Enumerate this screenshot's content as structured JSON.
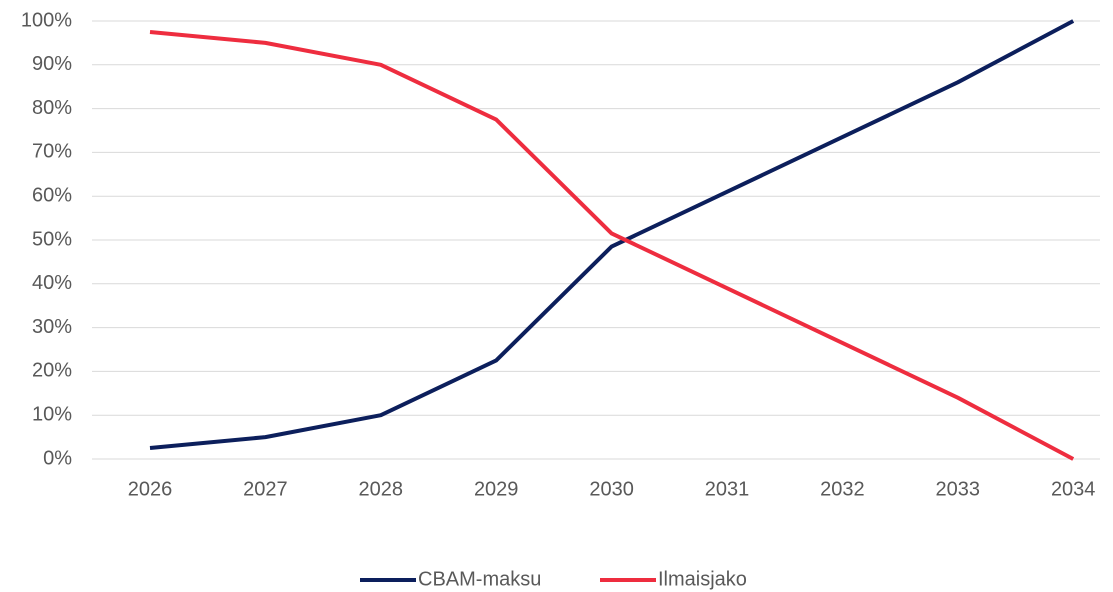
{
  "chart_data": {
    "type": "line",
    "categories": [
      "2026",
      "2027",
      "2028",
      "2029",
      "2030",
      "2031",
      "2032",
      "2033",
      "2034"
    ],
    "series": [
      {
        "name": "CBAM-maksu",
        "color": "#0c1f5c",
        "values": [
          2.5,
          5,
          10,
          22.5,
          48.5,
          61,
          73.5,
          86,
          100
        ]
      },
      {
        "name": "Ilmaisjako",
        "color": "#ee2d3f",
        "values": [
          97.5,
          95,
          90,
          77.5,
          51.5,
          39,
          26.5,
          14,
          0
        ]
      }
    ],
    "ylim": [
      0,
      100
    ],
    "yticks": [
      {
        "value": 0,
        "label": "0%"
      },
      {
        "value": 10,
        "label": "10%"
      },
      {
        "value": 20,
        "label": "20%"
      },
      {
        "value": 30,
        "label": "30%"
      },
      {
        "value": 40,
        "label": "40%"
      },
      {
        "value": 50,
        "label": "50%"
      },
      {
        "value": 60,
        "label": "60%"
      },
      {
        "value": 70,
        "label": "70%"
      },
      {
        "value": 80,
        "label": "80%"
      },
      {
        "value": 90,
        "label": "90%"
      },
      {
        "value": 100,
        "label": "100%"
      }
    ],
    "grid": true,
    "legend": "bottom"
  }
}
